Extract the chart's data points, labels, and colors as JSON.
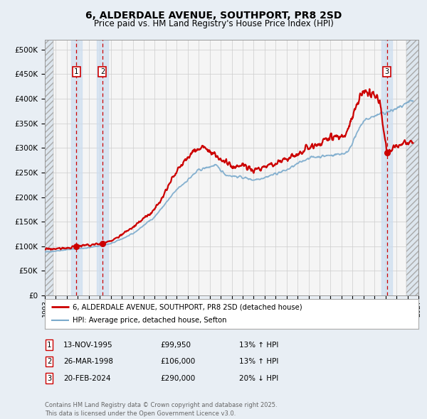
{
  "title": "6, ALDERDALE AVENUE, SOUTHPORT, PR8 2SD",
  "subtitle": "Price paid vs. HM Land Registry's House Price Index (HPI)",
  "xlim": [
    1993.0,
    2027.0
  ],
  "ylim": [
    0,
    520000
  ],
  "yticks": [
    0,
    50000,
    100000,
    150000,
    200000,
    250000,
    300000,
    350000,
    400000,
    450000,
    500000
  ],
  "ytick_labels": [
    "£0",
    "£50K",
    "£100K",
    "£150K",
    "£200K",
    "£250K",
    "£300K",
    "£350K",
    "£400K",
    "£450K",
    "£500K"
  ],
  "background_color": "#e8eef4",
  "plot_bg_color": "#f5f5f5",
  "grid_color": "#cccccc",
  "red_line_color": "#cc0000",
  "blue_line_color": "#7aaacc",
  "sale_marker_color": "#cc0000",
  "dashed_line_color": "#cc0000",
  "sale_band_color": "#ccddf0",
  "sale_band_alpha": 0.7,
  "hatch_region_color": "#dde6ee",
  "transactions": [
    {
      "num": 1,
      "date_x": 1995.87,
      "price": 99950
    },
    {
      "num": 2,
      "date_x": 1998.24,
      "price": 106000
    },
    {
      "num": 3,
      "date_x": 2024.13,
      "price": 290000
    }
  ],
  "legend_line1": "6, ALDERDALE AVENUE, SOUTHPORT, PR8 2SD (detached house)",
  "legend_line2": "HPI: Average price, detached house, Sefton",
  "table_rows": [
    [
      "1",
      "13-NOV-1995",
      "£99,950",
      "13% ↑ HPI"
    ],
    [
      "2",
      "26-MAR-1998",
      "£106,000",
      "13% ↑ HPI"
    ],
    [
      "3",
      "20-FEB-2024",
      "£290,000",
      "20% ↓ HPI"
    ]
  ],
  "footer_text": "Contains HM Land Registry data © Crown copyright and database right 2025.\nThis data is licensed under the Open Government Licence v3.0."
}
